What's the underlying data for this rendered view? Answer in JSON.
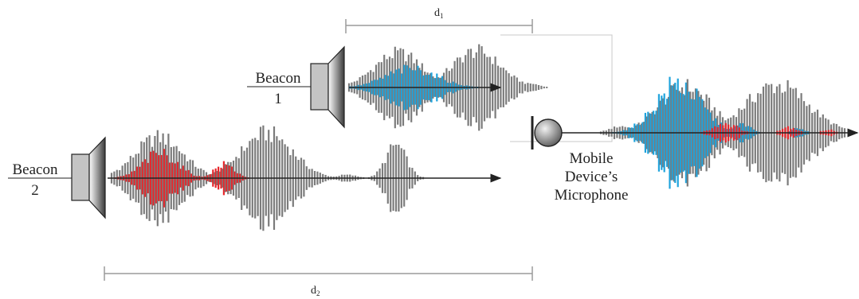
{
  "beacon1": {
    "name": "Beacon",
    "number": "1"
  },
  "beacon2": {
    "name": "Beacon",
    "number": "2"
  },
  "microphone": {
    "line1": "Mobile",
    "line2": "Device’s",
    "line3": "Microphone"
  },
  "distance1": {
    "letter": "d",
    "sub": "1"
  },
  "distance2": {
    "letter": "d",
    "sub": "2"
  },
  "colors": {
    "signal_beacon1": "#1fa3dc",
    "signal_beacon2": "#e8262b",
    "carrier": "#7b7b7b",
    "arrow": "#222222"
  }
}
